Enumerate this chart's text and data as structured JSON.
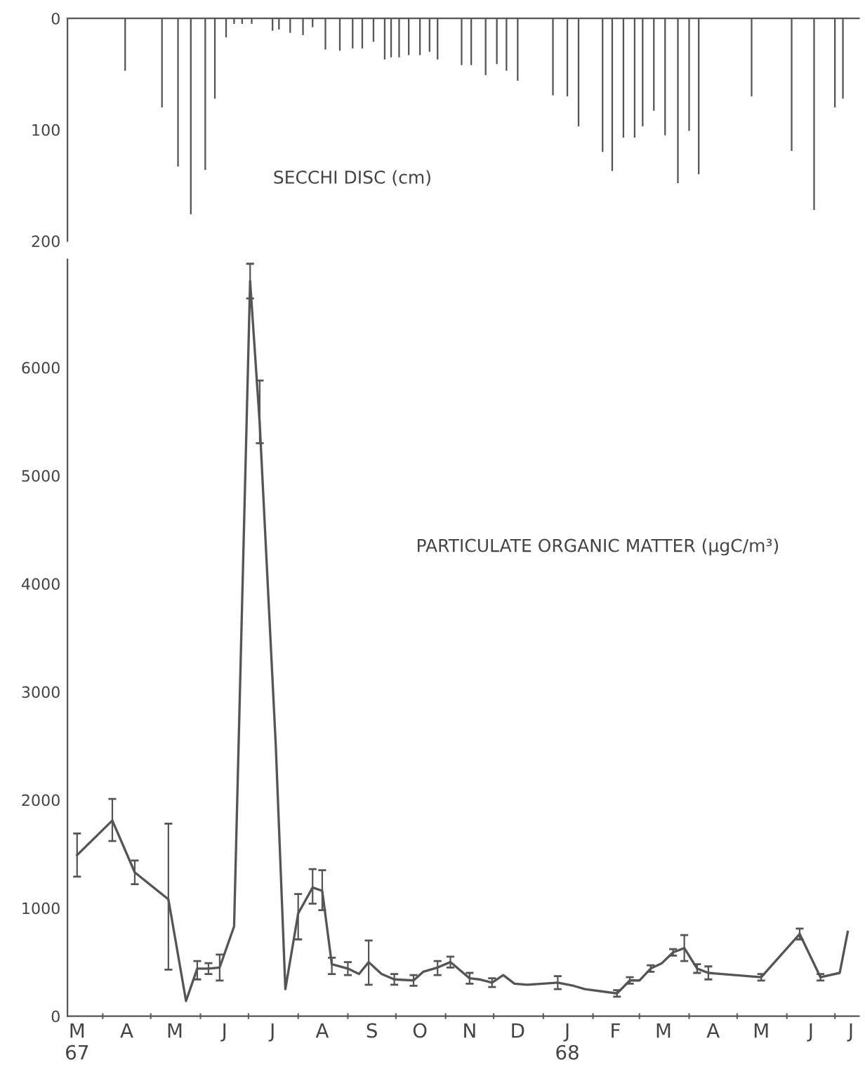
{
  "chart_data": [
    {
      "type": "bar",
      "annotations": [
        "SECCHI DISC (cm)"
      ],
      "xlim": [
        "1967-03-10",
        "1968-07-16"
      ],
      "ylim": [
        200,
        0
      ],
      "yticks": [
        0,
        100,
        200
      ],
      "tick_labels": "y",
      "x": [
        "1967-04-15",
        "1967-05-08",
        "1967-05-18",
        "1967-05-26",
        "1967-06-04",
        "1967-06-10",
        "1967-06-17",
        "1967-06-22",
        "1967-06-27",
        "1967-07-03",
        "1967-07-16",
        "1967-07-20",
        "1967-07-27",
        "1967-08-04",
        "1967-08-10",
        "1967-08-18",
        "1967-08-27",
        "1967-09-04",
        "1967-09-10",
        "1967-09-17",
        "1967-09-24",
        "1967-09-28",
        "1967-10-03",
        "1967-10-09",
        "1967-10-16",
        "1967-10-22",
        "1967-10-27",
        "1967-11-11",
        "1967-11-17",
        "1967-11-26",
        "1967-12-03",
        "1967-12-09",
        "1967-12-16",
        "1968-01-07",
        "1968-01-16",
        "1968-01-23",
        "1968-02-07",
        "1968-02-13",
        "1968-02-20",
        "1968-02-27",
        "1968-03-03",
        "1968-03-10",
        "1968-03-17",
        "1968-03-25",
        "1968-04-01",
        "1968-04-07",
        "1968-05-10",
        "1968-06-04",
        "1968-06-18",
        "1968-07-01",
        "1968-07-06"
      ],
      "values": [
        47,
        80,
        133,
        176,
        136,
        72,
        17,
        5,
        5,
        5,
        11,
        10,
        13,
        15,
        8,
        28,
        29,
        27,
        27,
        21,
        37,
        35,
        35,
        33,
        33,
        30,
        37,
        42,
        42,
        51,
        41,
        47,
        56,
        69,
        70,
        97,
        120,
        137,
        107,
        107,
        97,
        83,
        105,
        148,
        101,
        140,
        70,
        119,
        172,
        80,
        72
      ],
      "color": "#555555"
    },
    {
      "type": "line",
      "annotations": [
        "PARTICULATE ORGANIC MATTER (µgC/m³)"
      ],
      "xlim": [
        "1967-03-10",
        "1968-07-16"
      ],
      "ylim": [
        0,
        7000
      ],
      "yticks": [
        0,
        1000,
        2000,
        3000,
        4000,
        5000,
        6000
      ],
      "marker": "none",
      "line_style": "solid",
      "xticks": [
        {
          "value": "1967-03-16",
          "label": "M\n67"
        },
        {
          "value": "1967-04-01",
          "label": null
        },
        {
          "value": "1967-04-16",
          "label": "A"
        },
        {
          "value": "1967-05-01",
          "label": null
        },
        {
          "value": "1967-05-16",
          "label": "M"
        },
        {
          "value": "1967-06-01",
          "label": null
        },
        {
          "value": "1967-06-16",
          "label": "J"
        },
        {
          "value": "1967-07-01",
          "label": null
        },
        {
          "value": "1967-07-16",
          "label": "J"
        },
        {
          "value": "1967-08-01",
          "label": null
        },
        {
          "value": "1967-08-16",
          "label": "A"
        },
        {
          "value": "1967-09-01",
          "label": null
        },
        {
          "value": "1967-09-16",
          "label": "S"
        },
        {
          "value": "1967-10-01",
          "label": null
        },
        {
          "value": "1967-10-16",
          "label": "O"
        },
        {
          "value": "1967-11-01",
          "label": null
        },
        {
          "value": "1967-11-16",
          "label": "N"
        },
        {
          "value": "1967-12-01",
          "label": null
        },
        {
          "value": "1967-12-16",
          "label": "D"
        },
        {
          "value": "1968-01-01",
          "label": null
        },
        {
          "value": "1968-01-16",
          "label": "J\n68"
        },
        {
          "value": "1968-02-01",
          "label": null
        },
        {
          "value": "1968-02-15",
          "label": "F"
        },
        {
          "value": "1968-03-01",
          "label": null
        },
        {
          "value": "1968-03-16",
          "label": "M"
        },
        {
          "value": "1968-04-01",
          "label": null
        },
        {
          "value": "1968-04-16",
          "label": "A"
        },
        {
          "value": "1968-05-01",
          "label": null
        },
        {
          "value": "1968-05-16",
          "label": "M"
        },
        {
          "value": "1968-06-01",
          "label": null
        },
        {
          "value": "1968-06-16",
          "label": "J"
        },
        {
          "value": "1968-07-01",
          "label": null
        },
        {
          "value": "1968-07-11",
          "label": "J"
        }
      ],
      "series": [
        {
          "color": "#555555",
          "x": [
            "1967-03-16",
            "1967-04-07",
            "1967-04-21",
            "1967-05-12",
            "1967-05-23",
            "1967-05-30",
            "1967-06-06",
            "1967-06-13",
            "1967-06-22",
            "1967-07-02",
            "1967-07-08",
            "1967-07-18",
            "1967-07-24",
            "1967-08-01",
            "1967-08-10",
            "1967-08-16",
            "1967-08-22",
            "1967-09-01",
            "1967-09-08",
            "1967-09-14",
            "1967-09-22",
            "1967-09-30",
            "1967-10-12",
            "1967-10-18",
            "1967-10-27",
            "1967-11-04",
            "1967-11-16",
            "1967-11-22",
            "1967-11-30",
            "1967-12-07",
            "1967-12-14",
            "1967-12-22",
            "1968-01-10",
            "1968-01-20",
            "1968-01-27",
            "1968-02-16",
            "1968-02-24",
            "1968-03-01",
            "1968-03-08",
            "1968-03-15",
            "1968-03-22",
            "1968-03-29",
            "1968-04-06",
            "1968-04-13",
            "1968-05-16",
            "1968-06-09",
            "1968-06-22",
            "1968-07-04",
            "1968-07-09"
          ],
          "values": [
            1490,
            1810,
            1330,
            1080,
            140,
            440,
            440,
            450,
            830,
            6800,
            5480,
            2510,
            250,
            950,
            1190,
            1160,
            480,
            440,
            390,
            500,
            390,
            340,
            330,
            410,
            450,
            500,
            350,
            340,
            310,
            380,
            300,
            290,
            310,
            280,
            250,
            210,
            330,
            330,
            440,
            490,
            590,
            630,
            440,
            400,
            360,
            760,
            360,
            400,
            780
          ],
          "errors": [
            [
              1290,
              1690
            ],
            [
              1620,
              2010
            ],
            [
              1220,
              1440
            ],
            [
              430,
              1780
            ],
            null,
            [
              340,
              510
            ],
            [
              390,
              490
            ],
            [
              330,
              570
            ],
            null,
            [
              6640,
              6960
            ],
            [
              5300,
              5880
            ],
            null,
            null,
            [
              710,
              1130
            ],
            [
              1040,
              1360
            ],
            [
              980,
              1350
            ],
            [
              390,
              540
            ],
            [
              380,
              500
            ],
            null,
            [
              290,
              700
            ],
            null,
            [
              290,
              390
            ],
            [
              280,
              380
            ],
            null,
            [
              380,
              510
            ],
            [
              450,
              550
            ],
            [
              300,
              400
            ],
            null,
            [
              270,
              350
            ],
            null,
            null,
            null,
            [
              250,
              370
            ],
            null,
            null,
            [
              180,
              240
            ],
            [
              300,
              360
            ],
            null,
            [
              410,
              470
            ],
            null,
            [
              560,
              620
            ],
            [
              510,
              750
            ],
            [
              400,
              480
            ],
            [
              340,
              460
            ],
            [
              330,
              390
            ],
            [
              710,
              810
            ],
            [
              330,
              390
            ],
            null,
            null
          ]
        }
      ]
    }
  ]
}
